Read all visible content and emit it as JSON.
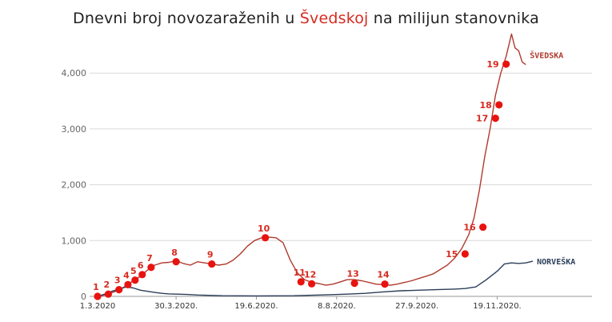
{
  "title": {
    "before": "Dnevni broj novozaraženih u ",
    "highlight": "Švedskoj",
    "after": " na milijun stanovnika"
  },
  "colors": {
    "sweden": "#b03a2e",
    "norway": "#2c3e5a",
    "marker": "#e8130f",
    "grid": "#d9d9d9",
    "axis": "#9a9a9a"
  },
  "chart_data": {
    "type": "line",
    "title": "Dnevni broj novozaraženih u Švedskoj na milijun stanovnika",
    "x_range": [
      0,
      265
    ],
    "ylim": [
      0,
      4700
    ],
    "y_ticks": [
      0,
      1000,
      2000,
      3000,
      4000
    ],
    "y_tick_labels": [
      "0",
      "1,000",
      "2,000",
      "3,000",
      "4,000"
    ],
    "x_ticks": [
      {
        "x": 0,
        "label": "1.3.2020"
      },
      {
        "x": 44,
        "label": "30.3.2020."
      },
      {
        "x": 89,
        "label": "19.6.2020."
      },
      {
        "x": 134,
        "label": "8.8.2020."
      },
      {
        "x": 179,
        "label": "27.9.2020."
      },
      {
        "x": 224,
        "label": "19.11.2020."
      }
    ],
    "grid": "horizontal",
    "series": [
      {
        "name": "ŠVEDSKA",
        "color": "#b03a2e",
        "points": [
          [
            0,
            0
          ],
          [
            5,
            30
          ],
          [
            10,
            90
          ],
          [
            15,
            170
          ],
          [
            20,
            280
          ],
          [
            24,
            360
          ],
          [
            28,
            470
          ],
          [
            32,
            560
          ],
          [
            36,
            600
          ],
          [
            40,
            610
          ],
          [
            44,
            640
          ],
          [
            48,
            590
          ],
          [
            52,
            560
          ],
          [
            56,
            620
          ],
          [
            60,
            600
          ],
          [
            64,
            580
          ],
          [
            68,
            560
          ],
          [
            72,
            580
          ],
          [
            76,
            650
          ],
          [
            80,
            760
          ],
          [
            84,
            900
          ],
          [
            88,
            1000
          ],
          [
            92,
            1050
          ],
          [
            96,
            1060
          ],
          [
            100,
            1050
          ],
          [
            104,
            960
          ],
          [
            108,
            650
          ],
          [
            112,
            420
          ],
          [
            116,
            300
          ],
          [
            120,
            250
          ],
          [
            124,
            230
          ],
          [
            128,
            200
          ],
          [
            132,
            220
          ],
          [
            136,
            260
          ],
          [
            140,
            300
          ],
          [
            144,
            300
          ],
          [
            148,
            280
          ],
          [
            152,
            250
          ],
          [
            156,
            220
          ],
          [
            160,
            210
          ],
          [
            164,
            200
          ],
          [
            168,
            220
          ],
          [
            172,
            250
          ],
          [
            176,
            280
          ],
          [
            180,
            320
          ],
          [
            184,
            360
          ],
          [
            188,
            400
          ],
          [
            192,
            480
          ],
          [
            196,
            560
          ],
          [
            200,
            680
          ],
          [
            204,
            850
          ],
          [
            208,
            1100
          ],
          [
            211,
            1400
          ],
          [
            214,
            1900
          ],
          [
            217,
            2500
          ],
          [
            220,
            3000
          ],
          [
            223,
            3600
          ],
          [
            226,
            4000
          ],
          [
            229,
            4300
          ],
          [
            232,
            4700
          ],
          [
            234,
            4450
          ],
          [
            236,
            4400
          ],
          [
            238,
            4200
          ],
          [
            240,
            4150
          ]
        ]
      },
      {
        "name": "NORVEŠKA",
        "color": "#2c3e5a",
        "points": [
          [
            0,
            0
          ],
          [
            4,
            40
          ],
          [
            8,
            90
          ],
          [
            12,
            130
          ],
          [
            16,
            170
          ],
          [
            20,
            150
          ],
          [
            24,
            110
          ],
          [
            28,
            90
          ],
          [
            32,
            70
          ],
          [
            36,
            55
          ],
          [
            40,
            45
          ],
          [
            44,
            40
          ],
          [
            50,
            35
          ],
          [
            56,
            25
          ],
          [
            62,
            18
          ],
          [
            70,
            12
          ],
          [
            80,
            10
          ],
          [
            90,
            8
          ],
          [
            100,
            10
          ],
          [
            110,
            12
          ],
          [
            120,
            20
          ],
          [
            130,
            30
          ],
          [
            140,
            40
          ],
          [
            150,
            55
          ],
          [
            160,
            80
          ],
          [
            170,
            100
          ],
          [
            180,
            110
          ],
          [
            190,
            120
          ],
          [
            200,
            130
          ],
          [
            206,
            140
          ],
          [
            212,
            170
          ],
          [
            218,
            300
          ],
          [
            224,
            450
          ],
          [
            228,
            580
          ],
          [
            232,
            600
          ],
          [
            236,
            590
          ],
          [
            240,
            600
          ],
          [
            244,
            630
          ]
        ]
      }
    ],
    "markers": [
      {
        "label": "1",
        "x": 0,
        "y": 0
      },
      {
        "label": "2",
        "x": 6,
        "y": 40
      },
      {
        "label": "3",
        "x": 12,
        "y": 120
      },
      {
        "label": "4",
        "x": 17,
        "y": 210
      },
      {
        "label": "5",
        "x": 21,
        "y": 290
      },
      {
        "label": "6",
        "x": 25,
        "y": 390
      },
      {
        "label": "7",
        "x": 30,
        "y": 520
      },
      {
        "label": "8",
        "x": 44,
        "y": 620
      },
      {
        "label": "9",
        "x": 64,
        "y": 580
      },
      {
        "label": "10",
        "x": 94,
        "y": 1050
      },
      {
        "label": "11",
        "x": 114,
        "y": 260
      },
      {
        "label": "12",
        "x": 120,
        "y": 225
      },
      {
        "label": "13",
        "x": 144,
        "y": 235
      },
      {
        "label": "14",
        "x": 161,
        "y": 220
      },
      {
        "label": "15",
        "x": 206,
        "y": 760
      },
      {
        "label": "16",
        "x": 216,
        "y": 1240
      },
      {
        "label": "17",
        "x": 223,
        "y": 3190
      },
      {
        "label": "18",
        "x": 225,
        "y": 3430
      },
      {
        "label": "19",
        "x": 229,
        "y": 4160
      }
    ]
  }
}
